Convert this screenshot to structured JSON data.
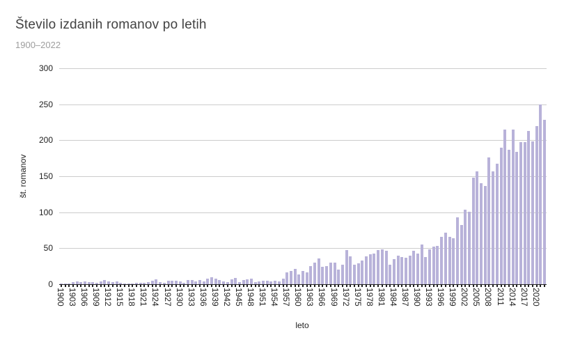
{
  "header": {
    "title": "Število izdanih romanov po letih",
    "subtitle": "1900–2022"
  },
  "chart_data": {
    "type": "bar",
    "title": "Število izdanih romanov po letih",
    "subtitle": "1900–2022",
    "xlabel": "leto",
    "ylabel": "št. romanov",
    "ylim": [
      0,
      300
    ],
    "y_ticks": [
      0,
      50,
      100,
      150,
      200,
      250,
      300
    ],
    "grid": "horizontal",
    "legend": "none",
    "bar_color": "#b8b2d9",
    "x_start_year": 1900,
    "x_end_year": 2022,
    "x_tick_labels": [
      "1900",
      "1903",
      "1906",
      "1909",
      "1912",
      "1915",
      "1918",
      "1921",
      "1924",
      "1927",
      "1930",
      "1933",
      "1936",
      "1939",
      "1942",
      "1945",
      "1948",
      "1951",
      "1954",
      "1957",
      "1960",
      "1963",
      "1966",
      "1969",
      "1972",
      "1975",
      "1978",
      "1981",
      "1984",
      "1987",
      "1990",
      "1993",
      "1996",
      "1999",
      "2002",
      "2005",
      "2008",
      "2011",
      "2014",
      "2017",
      "2020"
    ],
    "values": [
      1,
      1,
      1,
      3,
      4,
      3,
      4,
      3,
      3,
      2,
      4,
      6,
      4,
      3,
      4,
      2,
      1,
      1,
      1,
      2,
      2,
      2,
      3,
      5,
      7,
      3,
      2,
      5,
      5,
      5,
      4,
      2,
      6,
      6,
      4,
      6,
      4,
      8,
      10,
      8,
      6,
      4,
      3,
      7,
      9,
      3,
      6,
      7,
      8,
      3,
      4,
      5,
      5,
      4,
      5,
      4,
      8,
      16,
      18,
      21,
      14,
      18,
      16,
      25,
      30,
      36,
      24,
      25,
      30,
      30,
      20,
      27,
      47,
      39,
      27,
      29,
      33,
      39,
      42,
      43,
      47,
      48,
      46,
      27,
      35,
      40,
      38,
      37,
      40,
      46,
      43,
      55,
      38,
      48,
      52,
      53,
      66,
      72,
      66,
      64,
      93,
      82,
      104,
      101,
      148,
      157,
      140,
      136,
      176,
      157,
      167,
      190,
      215,
      187,
      215,
      184,
      197,
      197,
      213,
      198,
      220,
      250,
      228
    ]
  }
}
